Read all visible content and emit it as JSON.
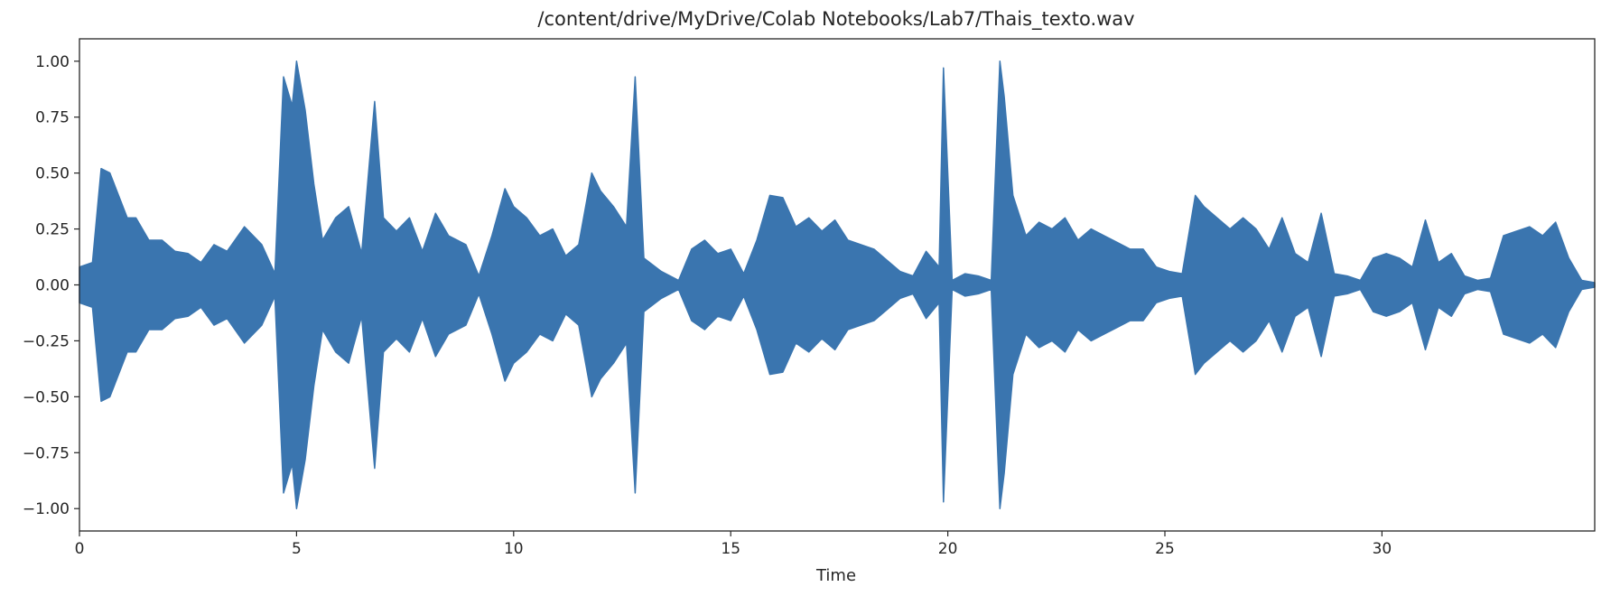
{
  "chart_data": {
    "type": "line",
    "title": "/content/drive/MyDrive/Colab Notebooks/Lab7/Thais_texto.wav",
    "xlabel": "Time",
    "ylabel": "",
    "xlim": [
      0,
      34.9
    ],
    "ylim": [
      -1.1,
      1.1
    ],
    "x_ticks": [
      0,
      5,
      10,
      15,
      20,
      25,
      30
    ],
    "x_tick_labels": [
      "0",
      "5",
      "10",
      "15",
      "20",
      "25",
      "30"
    ],
    "y_ticks": [
      1.0,
      0.75,
      0.5,
      0.25,
      0.0,
      -0.25,
      -0.5,
      -0.75,
      -1.0
    ],
    "y_tick_labels": [
      "1.00",
      "0.75",
      "0.50",
      "0.25",
      "0.00",
      "−0.25",
      "−0.50",
      "−0.75",
      "−1.00"
    ],
    "grid": false,
    "series_color": "#3a75af",
    "series": [
      {
        "x": [
          0.0,
          0.3,
          0.5,
          0.7,
          0.9,
          1.1,
          1.3,
          1.6,
          1.9,
          2.2,
          2.5,
          2.8,
          3.1,
          3.4,
          3.8,
          4.2,
          4.5,
          4.7,
          4.9,
          5.0,
          5.2,
          5.4,
          5.6,
          5.9,
          6.2,
          6.5,
          6.8,
          7.0,
          7.3,
          7.6,
          7.9,
          8.2,
          8.5,
          8.9,
          9.2,
          9.5,
          9.8,
          10.0,
          10.3,
          10.6,
          10.9,
          11.2,
          11.5,
          11.8,
          12.0,
          12.3,
          12.6,
          12.8,
          13.0,
          13.4,
          13.8,
          14.1,
          14.4,
          14.7,
          15.0,
          15.3,
          15.6,
          15.9,
          16.2,
          16.5,
          16.8,
          17.1,
          17.4,
          17.7,
          18.0,
          18.3,
          18.6,
          18.9,
          19.2,
          19.5,
          19.8,
          19.9,
          20.1,
          20.4,
          20.7,
          21.0,
          21.2,
          21.3,
          21.5,
          21.8,
          22.1,
          22.4,
          22.7,
          23.0,
          23.3,
          23.6,
          23.9,
          24.2,
          24.5,
          24.8,
          25.1,
          25.4,
          25.7,
          25.9,
          26.2,
          26.5,
          26.8,
          27.1,
          27.4,
          27.7,
          28.0,
          28.3,
          28.6,
          28.9,
          29.2,
          29.5,
          29.8,
          30.1,
          30.4,
          30.7,
          31.0,
          31.3,
          31.6,
          31.9,
          32.2,
          32.5,
          32.8,
          33.1,
          33.4,
          33.7,
          34.0,
          34.3,
          34.6,
          34.9
        ],
        "y": [
          0.08,
          0.1,
          0.52,
          0.5,
          0.4,
          0.3,
          0.3,
          0.2,
          0.2,
          0.15,
          0.14,
          0.1,
          0.18,
          0.15,
          0.26,
          0.18,
          0.05,
          0.93,
          0.8,
          1.0,
          0.78,
          0.45,
          0.2,
          0.3,
          0.35,
          0.14,
          0.82,
          0.3,
          0.24,
          0.3,
          0.15,
          0.32,
          0.22,
          0.18,
          0.04,
          0.22,
          0.43,
          0.35,
          0.3,
          0.22,
          0.25,
          0.13,
          0.18,
          0.5,
          0.42,
          0.35,
          0.26,
          0.93,
          0.12,
          0.06,
          0.02,
          0.16,
          0.2,
          0.14,
          0.16,
          0.05,
          0.2,
          0.4,
          0.39,
          0.26,
          0.3,
          0.24,
          0.29,
          0.2,
          0.18,
          0.16,
          0.11,
          0.06,
          0.04,
          0.15,
          0.08,
          0.97,
          0.02,
          0.05,
          0.04,
          0.02,
          1.0,
          0.84,
          0.4,
          0.22,
          0.28,
          0.25,
          0.3,
          0.2,
          0.25,
          0.22,
          0.19,
          0.16,
          0.16,
          0.08,
          0.06,
          0.05,
          0.4,
          0.35,
          0.3,
          0.25,
          0.3,
          0.25,
          0.16,
          0.3,
          0.14,
          0.1,
          0.32,
          0.05,
          0.04,
          0.02,
          0.12,
          0.14,
          0.12,
          0.08,
          0.29,
          0.1,
          0.14,
          0.04,
          0.02,
          0.03,
          0.22,
          0.24,
          0.26,
          0.22,
          0.28,
          0.12,
          0.02,
          0.01
        ]
      }
    ]
  }
}
